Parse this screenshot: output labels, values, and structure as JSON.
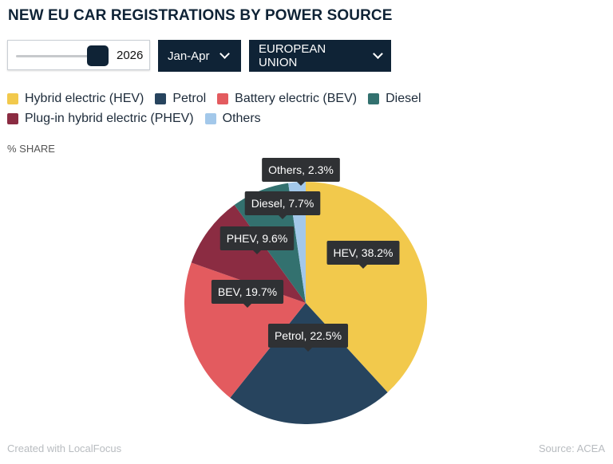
{
  "title": "NEW EU CAR REGISTRATIONS BY POWER SOURCE",
  "controls": {
    "year_slider": {
      "value": "2026"
    },
    "period_dropdown": {
      "selected": "Jan-Apr"
    },
    "region_dropdown": {
      "selected": "EUROPEAN UNION"
    }
  },
  "legend": [
    {
      "label": "Hybrid electric (HEV)",
      "color": "#f2c94c"
    },
    {
      "label": "Petrol",
      "color": "#27445e"
    },
    {
      "label": "Battery electric (BEV)",
      "color": "#e35b5f"
    },
    {
      "label": "Diesel",
      "color": "#33716f"
    },
    {
      "label": "Plug-in hybrid electric (PHEV)",
      "color": "#8b2c42"
    },
    {
      "label": "Others",
      "color": "#a3c8ea"
    }
  ],
  "share_label": "% SHARE",
  "chart_data": {
    "type": "pie",
    "unit": "%",
    "slices": [
      {
        "name": "HEV",
        "value": 38.2,
        "color": "#f2c94c",
        "label": "HEV, 38.2%"
      },
      {
        "name": "Petrol",
        "value": 22.5,
        "color": "#27445e",
        "label": "Petrol, 22.5%"
      },
      {
        "name": "BEV",
        "value": 19.7,
        "color": "#e35b5f",
        "label": "BEV, 19.7%"
      },
      {
        "name": "PHEV",
        "value": 9.6,
        "color": "#8b2c42",
        "label": "PHEV, 9.6%"
      },
      {
        "name": "Diesel",
        "value": 7.7,
        "color": "#33716f",
        "label": "Diesel, 7.7%"
      },
      {
        "name": "Others",
        "value": 2.3,
        "color": "#a3c8ea",
        "label": "Others, 2.3%"
      }
    ]
  },
  "footer": {
    "credit": "Created with LocalFocus",
    "source": "Source:  ACEA"
  }
}
